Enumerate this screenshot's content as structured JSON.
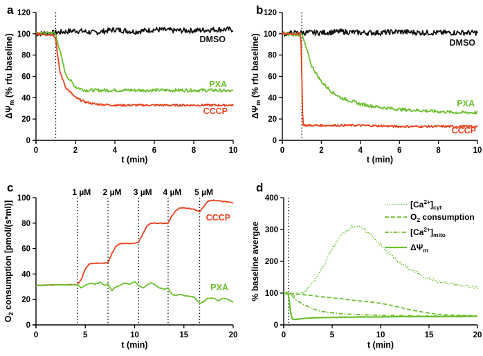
{
  "colors": {
    "DMSO": "#111111",
    "PXA": "#6abf2e",
    "CCCP": "#e8401c"
  },
  "chart_data": [
    {
      "panel": "a",
      "type": "line",
      "xlabel": "t (min)",
      "ylabel": "ΔΨm (% rfu baseline)",
      "ylabel_main": "ΔΨ",
      "ylabel_sub": "m",
      "ylabel_rest": " (% rfu baseline)",
      "xlim": [
        0,
        10
      ],
      "ylim": [
        0,
        120
      ],
      "xticks": [
        0,
        2,
        4,
        6,
        8,
        10
      ],
      "yticks": [
        0,
        20,
        40,
        60,
        80,
        100,
        120
      ],
      "vlines": [
        1.0
      ],
      "series": [
        {
          "name": "DMSO",
          "x": [
            0,
            1,
            2,
            3,
            4,
            5,
            6,
            7,
            8,
            9,
            10
          ],
          "y": [
            100,
            101,
            103,
            101,
            104,
            102,
            104,
            103,
            103,
            104,
            104
          ]
        },
        {
          "name": "PXA",
          "x": [
            0,
            0.9,
            1.0,
            1.2,
            1.5,
            2.0,
            2.5,
            3,
            4,
            5,
            6,
            7,
            8,
            9,
            10
          ],
          "y": [
            100,
            101,
            99,
            85,
            62,
            50,
            47,
            47,
            47,
            47,
            47,
            47,
            47,
            47,
            46
          ]
        },
        {
          "name": "CCCP",
          "x": [
            0,
            0.9,
            1.0,
            1.2,
            1.5,
            2.0,
            2.5,
            3,
            4,
            5,
            6,
            7,
            8,
            9,
            10
          ],
          "y": [
            100,
            99,
            95,
            65,
            50,
            40,
            36,
            34,
            33,
            33,
            33,
            33,
            33,
            33,
            33
          ]
        }
      ]
    },
    {
      "panel": "b",
      "type": "line",
      "xlabel": "t (min)",
      "ylabel": "ΔΨm (% rfu baseline)",
      "ylabel_main": "ΔΨ",
      "ylabel_sub": "m",
      "ylabel_rest": " (% rfu baseline)",
      "xlim": [
        0,
        10
      ],
      "ylim": [
        0,
        120
      ],
      "xticks": [
        0,
        2,
        4,
        6,
        8,
        10
      ],
      "yticks": [
        0,
        20,
        40,
        60,
        80,
        100,
        120
      ],
      "vlines": [
        1.0
      ],
      "series": [
        {
          "name": "DMSO",
          "x": [
            0,
            1,
            2,
            3,
            4,
            5,
            6,
            7,
            8,
            9,
            10
          ],
          "y": [
            100,
            101,
            101,
            102,
            101,
            101,
            102,
            101,
            101,
            101,
            101
          ]
        },
        {
          "name": "PXA",
          "x": [
            0,
            1.0,
            1.2,
            1.5,
            2.0,
            2.5,
            3,
            4,
            5,
            6,
            7,
            8,
            9,
            10
          ],
          "y": [
            100,
            99,
            88,
            70,
            55,
            46,
            40,
            34,
            31,
            29,
            28,
            27,
            26,
            26
          ]
        },
        {
          "name": "CCCP",
          "x": [
            0,
            0.95,
            1.0,
            1.05,
            1.2,
            2,
            4,
            6,
            8,
            10
          ],
          "y": [
            100,
            100,
            60,
            15,
            14,
            14,
            14,
            13,
            13,
            13
          ]
        }
      ]
    },
    {
      "panel": "c",
      "type": "line",
      "xlabel": "t (min)",
      "ylabel": "O2 consumption [pmol/(s*ml)]",
      "ylabel_main": "O",
      "ylabel_sub": "2",
      "ylabel_rest": " consumption [pmol/(s*ml)]",
      "xlim": [
        0,
        20
      ],
      "ylim": [
        0,
        100
      ],
      "xticks": [
        0,
        5,
        10,
        15,
        20
      ],
      "yticks": [
        0,
        20,
        40,
        60,
        80,
        100
      ],
      "vlines": [
        4.2,
        7.3,
        10.4,
        13.4,
        16.6
      ],
      "annotations": [
        "1 µM",
        "2 µM",
        "3 µM",
        "4 µM",
        "5 µM"
      ],
      "series": [
        {
          "name": "CCCP",
          "x": [
            0,
            2,
            4.2,
            4.6,
            5,
            5.4,
            6,
            7,
            7.3,
            7.7,
            8.1,
            8.5,
            9,
            10,
            10.4,
            10.8,
            11.2,
            11.6,
            12,
            13,
            13.4,
            13.8,
            14.2,
            14.6,
            15,
            16,
            16.6,
            17,
            17.4,
            17.8,
            18.5,
            19.2,
            20
          ],
          "y": [
            31,
            31.5,
            31.5,
            36,
            44,
            48,
            48.5,
            48.5,
            49,
            56,
            62,
            64,
            64,
            64,
            65,
            71,
            77,
            80,
            80,
            80,
            80,
            86,
            90,
            92,
            92,
            91,
            89,
            93,
            97,
            98,
            97.5,
            97,
            96
          ]
        },
        {
          "name": "PXA",
          "x": [
            0,
            2,
            4.2,
            4.6,
            5,
            5.5,
            6,
            6.5,
            7,
            7.3,
            7.7,
            8.1,
            8.5,
            9,
            9.5,
            10,
            10.4,
            10.8,
            11.2,
            11.6,
            12,
            12.5,
            13,
            13.4,
            13.8,
            14.2,
            14.6,
            15,
            16,
            16.6,
            17,
            17.4,
            18,
            18.5,
            19,
            19.5,
            20
          ],
          "y": [
            31,
            31.5,
            31.5,
            29,
            31,
            33,
            32,
            33.5,
            31,
            32,
            27,
            30,
            31,
            33,
            32,
            34,
            31,
            29,
            31,
            33,
            32,
            29,
            28,
            29,
            24,
            23,
            24,
            23,
            22,
            17,
            18,
            21,
            21,
            19,
            21,
            20,
            18
          ]
        }
      ]
    },
    {
      "panel": "d",
      "type": "line",
      "xlabel": "t (min)",
      "ylabel": "% baseline avergae",
      "xlim": [
        0,
        20
      ],
      "ylim": [
        0,
        400
      ],
      "xticks": [
        0,
        5,
        10,
        15,
        20
      ],
      "yticks": [
        0,
        100,
        200,
        300,
        400
      ],
      "vlines": [
        0.5
      ],
      "legend": [
        {
          "main": "[Ca",
          "sup": "2+",
          "close": "]",
          "sub": "cyt",
          "style": "dotted"
        },
        {
          "main": "O",
          "sub": "2",
          "rest": " consumption",
          "style": "dashed"
        },
        {
          "main": "[Ca",
          "sup": "2+",
          "close": "]",
          "sub": "mito",
          "style": "dashdot"
        },
        {
          "main": "ΔΨ",
          "sub": "m",
          "style": "solid"
        }
      ],
      "series": [
        {
          "name": "[Ca2+]cyt",
          "x": [
            0,
            0.5,
            1,
            2,
            3,
            4,
            5,
            6,
            7,
            7.5,
            8,
            9,
            10,
            11,
            12,
            13,
            14,
            15,
            16,
            17,
            18,
            19,
            20
          ],
          "y": [
            100,
            100,
            95,
            100,
            130,
            180,
            240,
            285,
            308,
            312,
            305,
            285,
            250,
            220,
            195,
            175,
            160,
            145,
            135,
            130,
            125,
            120,
            118
          ]
        },
        {
          "name": "O2 consumption",
          "x": [
            0,
            0.5,
            1,
            2,
            3,
            4,
            5,
            6,
            7,
            8,
            9,
            10,
            11,
            12,
            13,
            14,
            15,
            16,
            17,
            18,
            19,
            20
          ],
          "y": [
            100,
            100,
            98,
            95,
            92,
            88,
            85,
            82,
            78,
            75,
            72,
            68,
            62,
            55,
            48,
            42,
            37,
            33,
            31,
            30,
            29,
            28
          ]
        },
        {
          "name": "[Ca2+]mito",
          "x": [
            0,
            0.5,
            0.8,
            1.2,
            2,
            3,
            4,
            5,
            6,
            8,
            10,
            12,
            14,
            16,
            18,
            20
          ],
          "y": [
            100,
            100,
            95,
            80,
            65,
            50,
            42,
            38,
            35,
            32,
            30,
            29,
            28,
            28,
            28,
            28
          ]
        },
        {
          "name": "ΔΨm",
          "x": [
            0,
            0.5,
            0.7,
            0.9,
            1.2,
            2,
            3,
            4,
            6,
            8,
            10,
            12,
            14,
            16,
            18,
            20
          ],
          "y": [
            100,
            98,
            40,
            18,
            17,
            20,
            22,
            23,
            24,
            25,
            25,
            26,
            26,
            26,
            26,
            27
          ]
        }
      ]
    }
  ]
}
